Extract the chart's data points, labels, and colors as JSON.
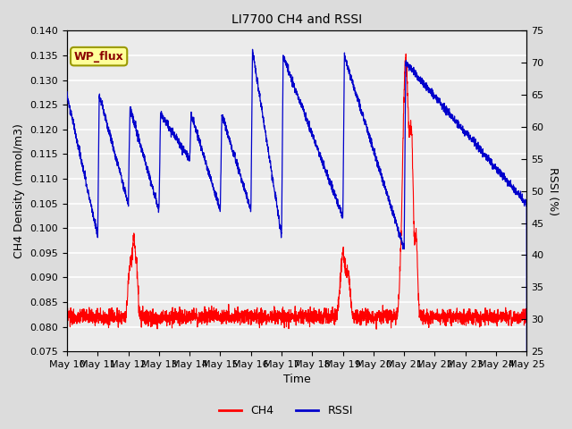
{
  "title": "LI7700 CH4 and RSSI",
  "xlabel": "Time",
  "ylabel_left": "CH4 Density (mmol/m3)",
  "ylabel_right": "RSSI (%)",
  "ylim_left": [
    0.075,
    0.14
  ],
  "ylim_right": [
    25,
    75
  ],
  "yticks_left": [
    0.075,
    0.08,
    0.085,
    0.09,
    0.095,
    0.1,
    0.105,
    0.11,
    0.115,
    0.12,
    0.125,
    0.13,
    0.135,
    0.14
  ],
  "yticks_right": [
    25,
    30,
    35,
    40,
    45,
    50,
    55,
    60,
    65,
    70,
    75
  ],
  "xtick_labels": [
    "May 10",
    "May 11",
    "May 12",
    "May 13",
    "May 14",
    "May 15",
    "May 16",
    "May 17",
    "May 18",
    "May 19",
    "May 20",
    "May 21",
    "May 22",
    "May 23",
    "May 24",
    "May 25"
  ],
  "ch4_color": "#FF0000",
  "rssi_color": "#0000CC",
  "fig_facecolor": "#DCDCDC",
  "ax_facecolor": "#EBEBEB",
  "grid_color": "#FFFFFF",
  "wp_flux_label": "WP_flux",
  "wp_flux_bg": "#FFFF99",
  "wp_flux_border": "#999900",
  "legend_ch4": "CH4",
  "legend_rssi": "RSSI",
  "title_fontsize": 10,
  "label_fontsize": 9,
  "tick_fontsize": 8
}
